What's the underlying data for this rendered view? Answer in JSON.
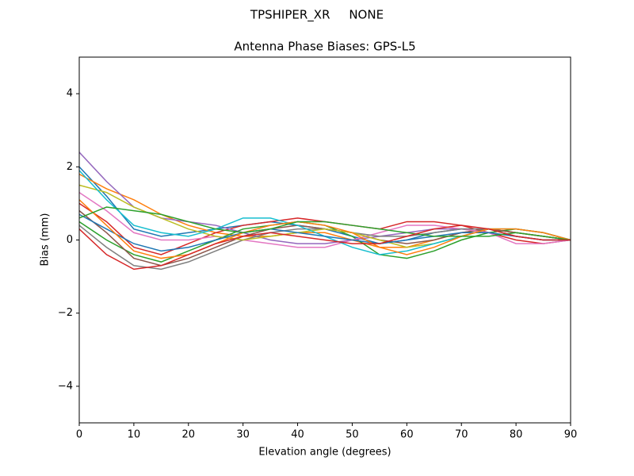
{
  "chart_data": {
    "type": "line",
    "suptitle": "TPSHIPER_XR     NONE",
    "title": "Antenna Phase Biases: GPS-L5",
    "xlabel": "Elevation angle (degrees)",
    "ylabel": "Bias (mm)",
    "x": [
      0,
      5,
      10,
      15,
      20,
      25,
      30,
      35,
      40,
      45,
      50,
      55,
      60,
      65,
      70,
      75,
      80,
      85,
      90
    ],
    "xlim": [
      0,
      90
    ],
    "xticks": [
      0,
      10,
      20,
      30,
      40,
      50,
      60,
      70,
      80,
      90
    ],
    "ylim": [
      -5,
      5
    ],
    "yticks": [
      {
        "value": -4,
        "label": "−4"
      },
      {
        "value": -2,
        "label": "−2"
      },
      0,
      2,
      4
    ],
    "grid": false,
    "series": [
      {
        "color": "#1f77b4",
        "values": [
          2.0,
          1.2,
          0.3,
          0.1,
          0.2,
          0.3,
          0.4,
          0.5,
          0.4,
          0.3,
          0.1,
          -0.1,
          0.0,
          0.2,
          0.3,
          0.3,
          0.2,
          0.1,
          0
        ]
      },
      {
        "color": "#ff7f0e",
        "values": [
          1.8,
          1.4,
          1.1,
          0.7,
          0.4,
          0.2,
          0.1,
          0.1,
          0.2,
          0.2,
          0.0,
          -0.2,
          -0.2,
          0.0,
          0.2,
          0.3,
          0.2,
          0.1,
          0
        ]
      },
      {
        "color": "#2ca02c",
        "values": [
          0.5,
          0.0,
          -0.4,
          -0.6,
          -0.3,
          0.0,
          0.3,
          0.4,
          0.5,
          0.4,
          0.1,
          -0.4,
          -0.5,
          -0.3,
          0.0,
          0.2,
          0.3,
          0.2,
          0
        ]
      },
      {
        "color": "#d62728",
        "values": [
          1.0,
          0.5,
          -0.2,
          -0.4,
          -0.1,
          0.2,
          0.4,
          0.5,
          0.6,
          0.5,
          0.4,
          0.3,
          0.5,
          0.5,
          0.4,
          0.2,
          0.0,
          -0.1,
          0
        ]
      },
      {
        "color": "#9467bd",
        "values": [
          2.4,
          1.6,
          0.9,
          0.6,
          0.5,
          0.4,
          0.2,
          0.0,
          -0.1,
          -0.1,
          0.0,
          0.1,
          0.2,
          0.3,
          0.3,
          0.2,
          0.1,
          0.0,
          0
        ]
      },
      {
        "color": "#8c564b",
        "values": [
          0.8,
          0.2,
          -0.5,
          -0.7,
          -0.5,
          -0.2,
          0.1,
          0.3,
          0.4,
          0.3,
          0.2,
          0.0,
          -0.1,
          0.0,
          0.2,
          0.3,
          0.2,
          0.1,
          0
        ]
      },
      {
        "color": "#e377c2",
        "values": [
          1.3,
          0.8,
          0.2,
          0.0,
          0.0,
          0.1,
          0.0,
          -0.1,
          -0.2,
          -0.2,
          0.0,
          0.2,
          0.4,
          0.4,
          0.3,
          0.2,
          -0.1,
          -0.1,
          0
        ]
      },
      {
        "color": "#7f7f7f",
        "values": [
          0.4,
          -0.2,
          -0.7,
          -0.8,
          -0.6,
          -0.3,
          0.0,
          0.2,
          0.3,
          0.3,
          0.2,
          0.1,
          0.1,
          0.2,
          0.3,
          0.3,
          0.1,
          0.0,
          0
        ]
      },
      {
        "color": "#bcbd22",
        "values": [
          1.5,
          1.3,
          0.9,
          0.6,
          0.3,
          0.1,
          0.0,
          0.1,
          0.2,
          0.3,
          0.2,
          0.0,
          -0.2,
          -0.1,
          0.1,
          0.3,
          0.3,
          0.2,
          0
        ]
      },
      {
        "color": "#17becf",
        "values": [
          1.9,
          1.1,
          0.4,
          0.2,
          0.1,
          0.3,
          0.6,
          0.6,
          0.4,
          0.1,
          -0.2,
          -0.4,
          -0.3,
          -0.1,
          0.1,
          0.3,
          0.3,
          0.2,
          0
        ]
      },
      {
        "color": "#1f77b4",
        "values": [
          0.7,
          0.3,
          -0.1,
          -0.3,
          -0.2,
          0.0,
          0.2,
          0.3,
          0.2,
          0.1,
          0.0,
          -0.1,
          0.0,
          0.1,
          0.2,
          0.2,
          0.1,
          0.0,
          0
        ]
      },
      {
        "color": "#ff7f0e",
        "values": [
          1.1,
          0.4,
          -0.3,
          -0.5,
          -0.4,
          -0.1,
          0.2,
          0.4,
          0.5,
          0.4,
          0.2,
          -0.2,
          -0.4,
          -0.2,
          0.1,
          0.3,
          0.3,
          0.2,
          0
        ]
      },
      {
        "color": "#2ca02c",
        "values": [
          0.6,
          0.9,
          0.8,
          0.7,
          0.5,
          0.3,
          0.2,
          0.3,
          0.5,
          0.5,
          0.4,
          0.3,
          0.2,
          0.1,
          0.1,
          0.1,
          0.2,
          0.1,
          0
        ]
      },
      {
        "color": "#d62728",
        "values": [
          0.3,
          -0.4,
          -0.8,
          -0.7,
          -0.4,
          -0.1,
          0.1,
          0.2,
          0.1,
          0.0,
          -0.1,
          -0.1,
          0.1,
          0.3,
          0.4,
          0.3,
          0.1,
          0.0,
          0
        ]
      }
    ]
  }
}
